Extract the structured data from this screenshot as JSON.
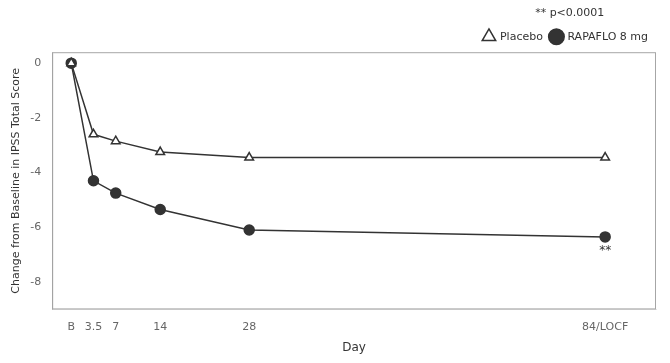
{
  "chart_data": {
    "type": "line",
    "x": [
      0,
      3.5,
      7,
      14,
      28,
      84
    ],
    "series": [
      {
        "name": "Placebo",
        "color": "#333333",
        "marker": "triangle_open",
        "values": [
          0.0,
          -2.6,
          -2.85,
          -3.25,
          -3.45,
          -3.45
        ]
      },
      {
        "name": "RAPAFLO 8 mg",
        "color": "#333333",
        "marker": "circle",
        "values": [
          0.0,
          -4.3,
          -4.75,
          -5.35,
          -6.1,
          -6.35
        ]
      }
    ],
    "xlabel": "Day",
    "ylabel": "Change from Baseline in IPSS Total Score",
    "xlim": [
      -3,
      92
    ],
    "xticks": [
      {
        "value": 0,
        "label": "B"
      },
      3.5,
      7,
      14,
      28,
      {
        "value": 84,
        "label": "84/LOCF"
      }
    ],
    "ylim": [
      -9,
      0.4
    ],
    "yticks": [
      0,
      -2,
      -4,
      -6,
      -8
    ],
    "annotations": [
      {
        "text": "**",
        "x": 84,
        "y": -6.35
      },
      {
        "text": "** p<0.0001"
      }
    ],
    "grid": false,
    "legend": "upper right"
  }
}
